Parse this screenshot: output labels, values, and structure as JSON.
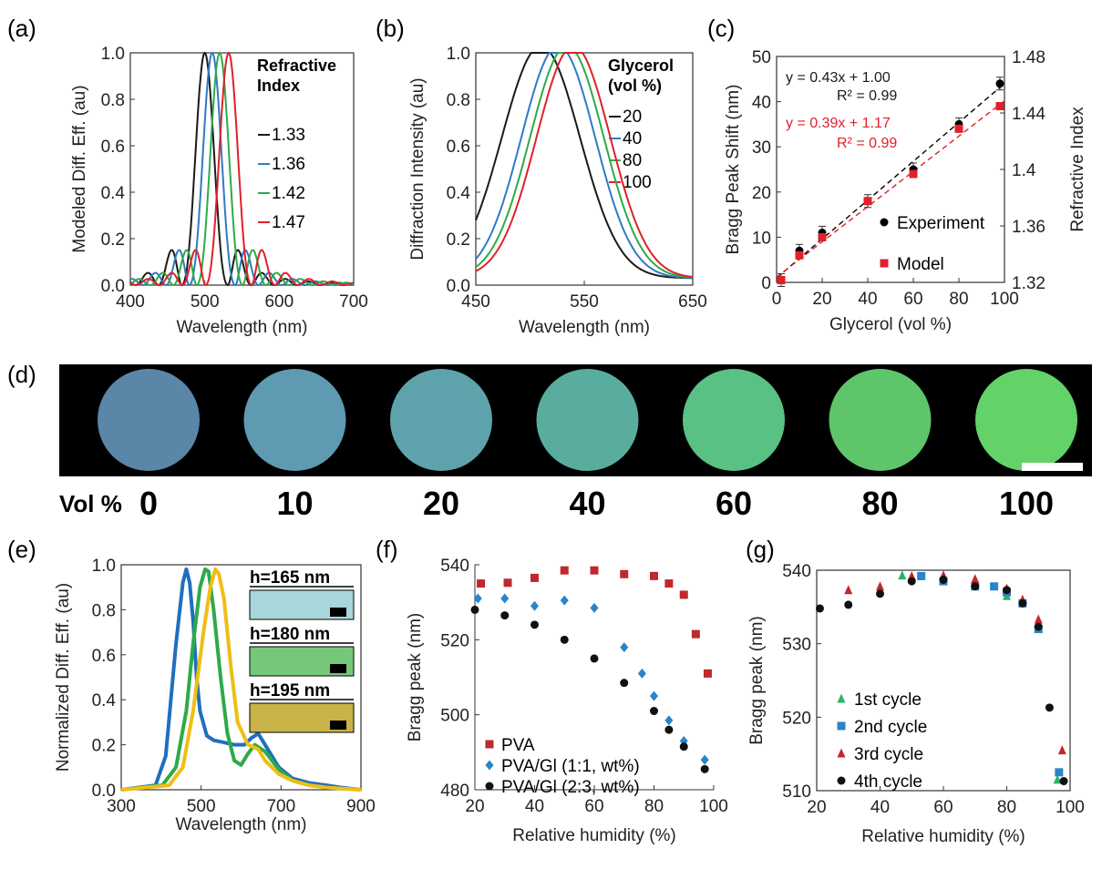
{
  "figure": {
    "panel_labels": [
      "(a)",
      "(b)",
      "(c)",
      "(d)",
      "(e)",
      "(f)",
      "(g)"
    ]
  },
  "chart_data": [
    {
      "panel": "(a)",
      "type": "line",
      "xlabel": "Wavelength (nm)",
      "ylabel": "Modeled Diff. Eff. (au)",
      "xlim": [
        400,
        700
      ],
      "ylim": [
        0,
        1
      ],
      "xticks": [
        "400",
        "500",
        "600",
        "700"
      ],
      "yticks": [
        "0.0",
        "0.2",
        "0.4",
        "0.6",
        "0.8",
        "1.0"
      ],
      "legend_title": [
        "Refractive",
        "Index"
      ],
      "legend_position": "top-right",
      "grid": false,
      "series": [
        {
          "name": "1.33",
          "color": "#1a1a1a",
          "peak": 500,
          "width": 23
        },
        {
          "name": "1.36",
          "color": "#2e7bc4",
          "peak": 510,
          "width": 23
        },
        {
          "name": "1.42",
          "color": "#2eaa48",
          "peak": 520,
          "width": 23
        },
        {
          "name": "1.47",
          "color": "#e0202a",
          "peak": 532,
          "width": 23
        }
      ]
    },
    {
      "panel": "(b)",
      "type": "line",
      "xlabel": "Wavelength (nm)",
      "ylabel": "Diffraction Intensity (au)",
      "xlim": [
        450,
        650
      ],
      "ylim": [
        0,
        1
      ],
      "xticks": [
        "450",
        "550",
        "650"
      ],
      "yticks": [
        "0.0",
        "0.2",
        "0.4",
        "0.6",
        "0.8",
        "1.0"
      ],
      "legend_title": [
        "Glycerol",
        "(vol %)"
      ],
      "legend_position": "top-right",
      "grid": false,
      "series": [
        {
          "name": "20",
          "color": "#1a1a1a",
          "peak": 510,
          "width": 36
        },
        {
          "name": "40",
          "color": "#2e7bc4",
          "peak": 526,
          "width": 34
        },
        {
          "name": "80",
          "color": "#2eaa48",
          "peak": 534,
          "width": 34
        },
        {
          "name": "100",
          "color": "#e0202a",
          "peak": 540,
          "width": 34
        }
      ]
    },
    {
      "panel": "(c)",
      "type": "scatter",
      "xlabel": "Glycerol (vol %)",
      "ylabel": "Bragg Peak Shift (nm)",
      "y2label": "Refractive Index",
      "xlim": [
        0,
        100
      ],
      "ylim": [
        0,
        50
      ],
      "y2lim": [
        1.32,
        1.48
      ],
      "xticks": [
        "0",
        "20",
        "40",
        "60",
        "80",
        "100"
      ],
      "yticks": [
        "0",
        "10",
        "20",
        "30",
        "40",
        "50"
      ],
      "y2ticks": [
        "1.32",
        "1.36",
        "1.4",
        "1.44",
        "1.48"
      ],
      "legend_position": "bottom-right",
      "annotations": [
        {
          "text": "y = 0.43x + 1.00",
          "color": "#1a1a1a"
        },
        {
          "text": "R² = 0.99",
          "color": "#1a1a1a"
        },
        {
          "text": "y = 0.39x + 1.17",
          "color": "#e0202a"
        },
        {
          "text": "R² = 0.99",
          "color": "#e0202a"
        }
      ],
      "series": [
        {
          "name": "Experiment",
          "color": "#000000",
          "marker": "circle",
          "x": [
            2,
            10,
            20,
            40,
            60,
            80,
            98
          ],
          "y": [
            0.5,
            7,
            11,
            18,
            25,
            35,
            44
          ],
          "fit": {
            "slope": 0.43,
            "intercept": 1.0
          }
        },
        {
          "name": "Model",
          "color": "#e0202a",
          "marker": "square",
          "x": [
            2,
            10,
            20,
            40,
            60,
            80,
            98
          ],
          "y": [
            0.5,
            6,
            10,
            18,
            24,
            34,
            39
          ],
          "fit": {
            "slope": 0.39,
            "intercept": 1.17
          }
        }
      ]
    },
    {
      "panel": "(d)",
      "type": "image-row",
      "row_label": "Vol %",
      "samples": [
        {
          "label": "0",
          "color": "#5a86a8"
        },
        {
          "label": "10",
          "color": "#5e9ab2"
        },
        {
          "label": "20",
          "color": "#5ea3ab"
        },
        {
          "label": "40",
          "color": "#58ad9f"
        },
        {
          "label": "60",
          "color": "#59c184"
        },
        {
          "label": "80",
          "color": "#5ec56a"
        },
        {
          "label": "100",
          "color": "#63d268"
        }
      ]
    },
    {
      "panel": "(e)",
      "type": "line",
      "xlabel": "Wavelength (nm)",
      "ylabel": "Normalized Diff. Eff. (au)",
      "xlim": [
        300,
        1000
      ],
      "ylim": [
        0,
        1
      ],
      "xticks": [
        "300",
        "500",
        "700",
        "900"
      ],
      "yticks": [
        "0.0",
        "0.2",
        "0.4",
        "0.6",
        "0.8",
        "1.0"
      ],
      "grid": false,
      "series": [
        {
          "name": "h=165 nm",
          "color": "#1f6fc0",
          "x": [
            300,
            400,
            430,
            460,
            480,
            490,
            500,
            510,
            520,
            530,
            550,
            570,
            600,
            630,
            660,
            680,
            700,
            720,
            760,
            800,
            850,
            900,
            940,
            1000
          ],
          "y": [
            0,
            0.02,
            0.15,
            0.65,
            0.92,
            0.98,
            0.92,
            0.75,
            0.5,
            0.35,
            0.24,
            0.22,
            0.21,
            0.2,
            0.2,
            0.23,
            0.25,
            0.2,
            0.1,
            0.05,
            0.03,
            0.02,
            0.01,
            0
          ]
        },
        {
          "name": "h=180 nm",
          "color": "#2eaa48",
          "x": [
            300,
            420,
            460,
            490,
            510,
            530,
            545,
            555,
            570,
            590,
            610,
            630,
            650,
            670,
            690,
            720,
            760,
            800,
            850,
            900,
            1000
          ],
          "y": [
            0,
            0.02,
            0.1,
            0.35,
            0.65,
            0.9,
            0.98,
            0.97,
            0.8,
            0.5,
            0.25,
            0.13,
            0.11,
            0.16,
            0.2,
            0.17,
            0.09,
            0.04,
            0.02,
            0.01,
            0
          ]
        },
        {
          "name": "h=195 nm",
          "color": "#f0be14",
          "x": [
            300,
            440,
            480,
            510,
            540,
            560,
            575,
            585,
            600,
            620,
            640,
            670,
            700,
            720,
            760,
            800,
            850,
            900,
            1000
          ],
          "y": [
            0,
            0.02,
            0.1,
            0.35,
            0.7,
            0.9,
            0.98,
            0.96,
            0.85,
            0.55,
            0.3,
            0.2,
            0.18,
            0.13,
            0.07,
            0.04,
            0.02,
            0.01,
            0
          ]
        }
      ],
      "insets": [
        {
          "label": "h=165 nm",
          "color": "#a9d6da"
        },
        {
          "label": "h=180 nm",
          "color": "#75c87a"
        },
        {
          "label": "h=195 nm",
          "color": "#c9b248"
        }
      ]
    },
    {
      "panel": "(f)",
      "type": "scatter",
      "xlabel": "Relative humidity (%)",
      "ylabel": "Bragg peak (nm)",
      "xlim": [
        20,
        100
      ],
      "ylim": [
        480,
        540
      ],
      "xticks": [
        "20",
        "40",
        "60",
        "80",
        "100"
      ],
      "yticks": [
        "480",
        "500",
        "520",
        "540"
      ],
      "legend_position": "bottom-left",
      "series": [
        {
          "name": "PVA",
          "color": "#c0282e",
          "marker": "square",
          "x": [
            22,
            31,
            40,
            50,
            60,
            70,
            80,
            85,
            90,
            94,
            98
          ],
          "y": [
            535,
            535.2,
            536.5,
            538.5,
            538.5,
            537.5,
            537,
            535,
            532,
            521.5,
            511
          ]
        },
        {
          "name": "PVA/Gl (1:1, wt%)",
          "color": "#2a84c8",
          "marker": "diamond",
          "x": [
            21,
            30,
            40,
            50,
            60,
            70,
            76,
            80,
            85,
            90,
            97
          ],
          "y": [
            531,
            531,
            529,
            530.5,
            528.5,
            518,
            511,
            505,
            498.5,
            493,
            488
          ]
        },
        {
          "name": "PVA/Gl (2:3, wt%)",
          "color": "#111111",
          "marker": "circle",
          "x": [
            20,
            30,
            40,
            50,
            60,
            70,
            80,
            85,
            90,
            97
          ],
          "y": [
            528,
            526.5,
            524,
            520,
            515,
            508.5,
            501,
            496,
            491.5,
            485.5
          ]
        }
      ]
    },
    {
      "panel": "(g)",
      "type": "scatter",
      "xlabel": "Relative humidity (%)",
      "ylabel": "Bragg peak (nm)",
      "xlim": [
        20,
        100
      ],
      "ylim": [
        510,
        540
      ],
      "xticks": [
        "20",
        "40",
        "60",
        "80",
        "100"
      ],
      "yticks": [
        "510",
        "520",
        "530",
        "540"
      ],
      "legend_position": "bottom-left",
      "series": [
        {
          "name": "1st cycle",
          "color": "#2ab468",
          "marker": "triangle",
          "x": [
            47,
            60,
            70,
            80,
            85,
            90,
            96
          ],
          "y": [
            539.3,
            539,
            538.5,
            536.5,
            535.5,
            532,
            511.5
          ]
        },
        {
          "name": "2nd cycle",
          "color": "#2a84c8",
          "marker": "square",
          "x": [
            53,
            60,
            70,
            76,
            80,
            85,
            90,
            96.5
          ],
          "y": [
            539.2,
            538.5,
            537.8,
            537.8,
            537,
            535.5,
            532,
            512.5
          ]
        },
        {
          "name": "3rd cycle",
          "color": "#c0282e",
          "marker": "triangle",
          "x": [
            30,
            40,
            50,
            60,
            70,
            80,
            85,
            90,
            97.5
          ],
          "y": [
            537.3,
            537.8,
            539.2,
            539.3,
            538.8,
            537.5,
            536,
            533.3,
            515.5
          ]
        },
        {
          "name": "4th cycle",
          "color": "#111111",
          "marker": "circle",
          "x": [
            21,
            30,
            40,
            50,
            60,
            70,
            80,
            85,
            90,
            93.5,
            98
          ],
          "y": [
            534.8,
            535.3,
            536.8,
            538.5,
            538.7,
            537.8,
            537.3,
            535.5,
            532.3,
            521.3,
            511.3
          ]
        }
      ]
    }
  ]
}
